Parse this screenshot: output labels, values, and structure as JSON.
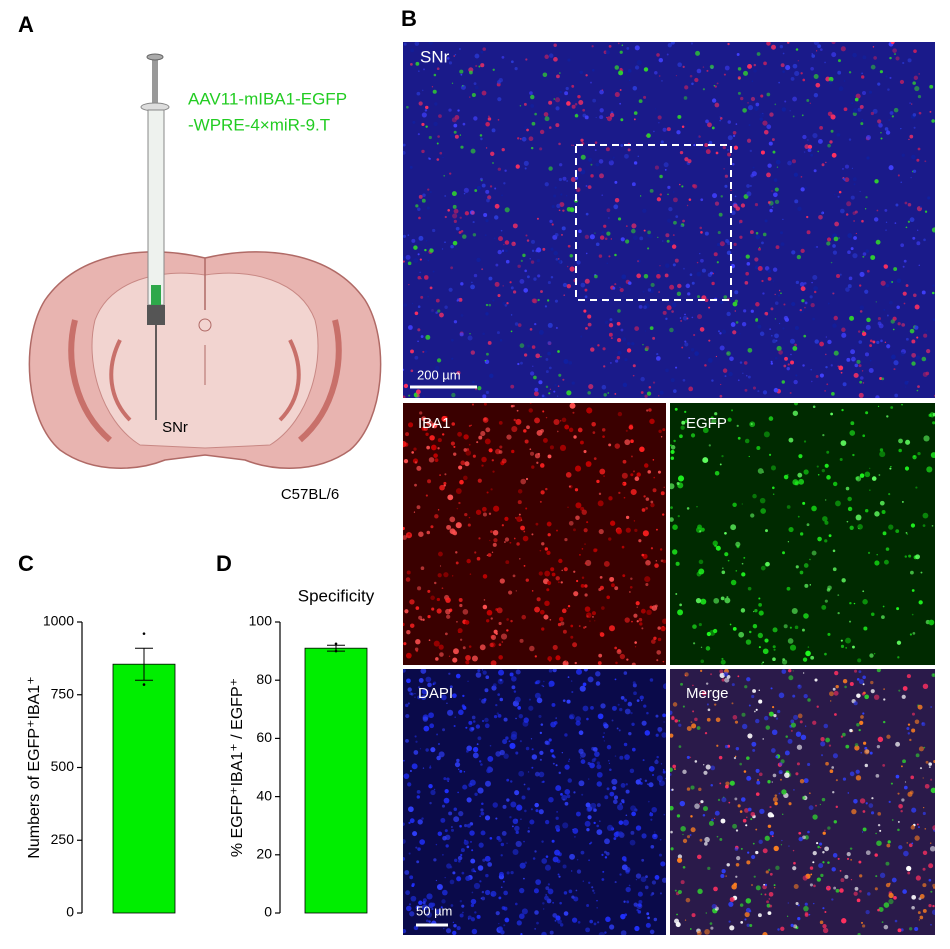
{
  "panel_labels": [
    "A",
    "B",
    "C",
    "D"
  ],
  "diagram": {
    "vector_line1": "AAV11-mIBA1-EGFP",
    "vector_line2": "-WPRE-4×miR-9.T",
    "target": "SNr",
    "strain": "C57BL/6"
  },
  "images": {
    "overview_label": "SNr",
    "overview_scale": "200 µm",
    "channels": [
      "IBA1",
      "EGFP",
      "DAPI",
      "Merge"
    ],
    "detail_scale": "50 µm"
  },
  "chart_data": [
    {
      "type": "bar",
      "ylabel": "Numbers of EGFP⁺IBA1⁺",
      "values": [
        855
      ],
      "errors": [
        55
      ],
      "points": [
        960,
        785
      ],
      "color": "#00ee00",
      "ylim": [
        0,
        1000
      ],
      "yticks": [
        0,
        250,
        500,
        750,
        1000
      ]
    },
    {
      "type": "bar",
      "title": "Specificity",
      "ylabel": "% EGFP⁺IBA1⁺ / EGFP⁺",
      "values": [
        91
      ],
      "errors": [
        1
      ],
      "points": [
        92.5,
        90
      ],
      "color": "#00ee00",
      "ylim": [
        0,
        100
      ],
      "yticks": [
        0,
        20,
        40,
        60,
        80,
        100
      ]
    }
  ]
}
